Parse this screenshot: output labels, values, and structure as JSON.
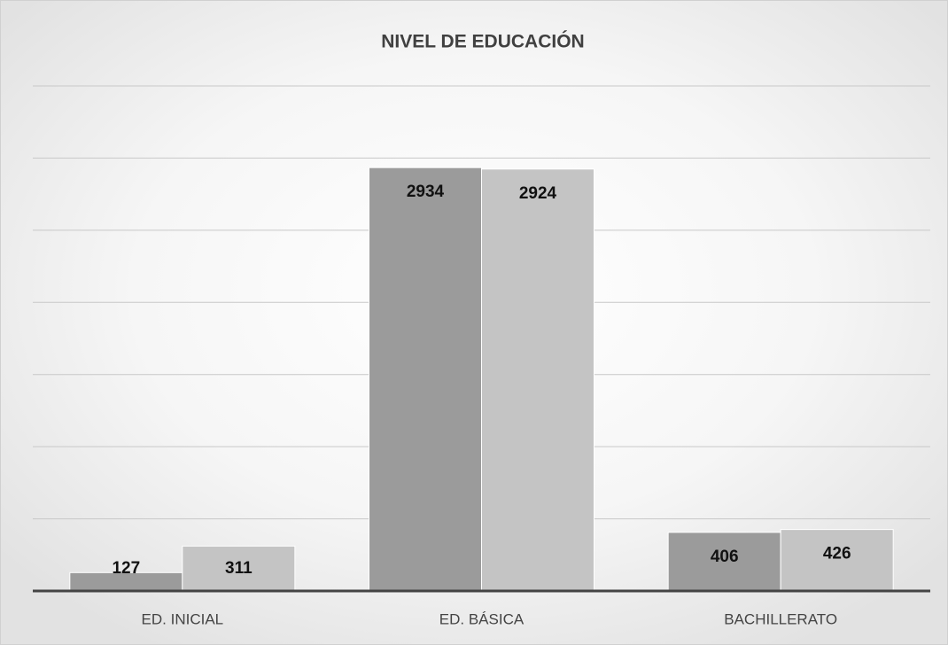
{
  "chart_data": {
    "type": "bar",
    "title": "NIVEL DE EDUCACIÓN",
    "categories": [
      "ED. INICIAL",
      "ED. BÁSICA",
      "BACHILLERATO"
    ],
    "series": [
      {
        "color": "#9b9b9b",
        "values": [
          127,
          2934,
          406
        ]
      },
      {
        "color": "#c4c4c4",
        "values": [
          311,
          2924,
          426
        ]
      }
    ],
    "ylim": [
      0,
      3500
    ],
    "yticks": [
      0,
      500,
      1000,
      1500,
      2000,
      2500,
      3000,
      3500
    ],
    "grid": true
  }
}
